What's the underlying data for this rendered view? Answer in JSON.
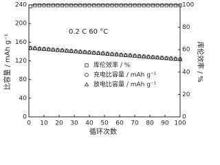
{
  "chart_data": {
    "type": "scatter",
    "annotation": "0.2 C  60 °C",
    "x_label": "循环次数",
    "y_label": "比容量 / mAh g⁻¹",
    "y2_label": "库伦效率 / %",
    "xlim": [
      0,
      100
    ],
    "xticks": [
      0,
      10,
      20,
      30,
      40,
      50,
      60,
      70,
      80,
      90,
      100
    ],
    "ylim": [
      0,
      240
    ],
    "yticks": [
      0,
      40,
      80,
      120,
      160,
      200,
      240
    ],
    "y2lim": [
      0,
      100
    ],
    "y2ticks": [
      0,
      20,
      40,
      60,
      80,
      100
    ],
    "x": [
      1,
      4,
      7,
      10,
      13,
      16,
      19,
      22,
      25,
      28,
      31,
      34,
      37,
      40,
      43,
      46,
      49,
      52,
      55,
      58,
      61,
      64,
      67,
      70,
      73,
      76,
      79,
      82,
      85,
      88,
      91,
      94,
      97,
      100
    ],
    "series": [
      {
        "name": "库伦效率 / %",
        "marker": "square",
        "color": "#222222",
        "axis": "y2",
        "values": [
          98.5,
          99.5,
          99.5,
          99.5,
          99.5,
          99.5,
          99.5,
          99.5,
          99.5,
          99.5,
          99.5,
          99.5,
          99.5,
          99.5,
          99.5,
          99.5,
          99.5,
          99.5,
          99.5,
          99.5,
          99.5,
          99.5,
          99.5,
          99.5,
          99.5,
          99.5,
          99.5,
          99.5,
          99.5,
          99.5,
          99.5,
          99.5,
          99.5,
          99.5
        ]
      },
      {
        "name": "充电比容量 / mAh g⁻¹",
        "marker": "circle",
        "color": "#222222",
        "values": [
          148,
          147.3,
          146.5,
          145.8,
          145.1,
          144.4,
          143.6,
          142.9,
          142.2,
          141.5,
          140.7,
          140.0,
          139.3,
          138.5,
          137.8,
          137.1,
          136.4,
          135.6,
          134.9,
          134.2,
          133.5,
          132.7,
          132.0,
          131.3,
          130.5,
          129.8,
          129.1,
          128.4,
          127.6,
          126.9,
          126.2,
          125.5,
          124.7,
          124.0
        ]
      },
      {
        "name": "放电比容量 / mAh g⁻¹",
        "marker": "triangle",
        "color": "#222222",
        "values": [
          147,
          146.3,
          145.5,
          144.8,
          144.1,
          143.4,
          142.6,
          141.9,
          141.2,
          140.5,
          139.7,
          139.0,
          138.3,
          137.5,
          136.8,
          136.1,
          135.4,
          134.6,
          133.9,
          133.2,
          132.5,
          131.7,
          131.0,
          130.3,
          129.5,
          128.8,
          128.1,
          127.4,
          126.6,
          125.9,
          125.2,
          124.5,
          123.7,
          123.0
        ]
      }
    ]
  }
}
